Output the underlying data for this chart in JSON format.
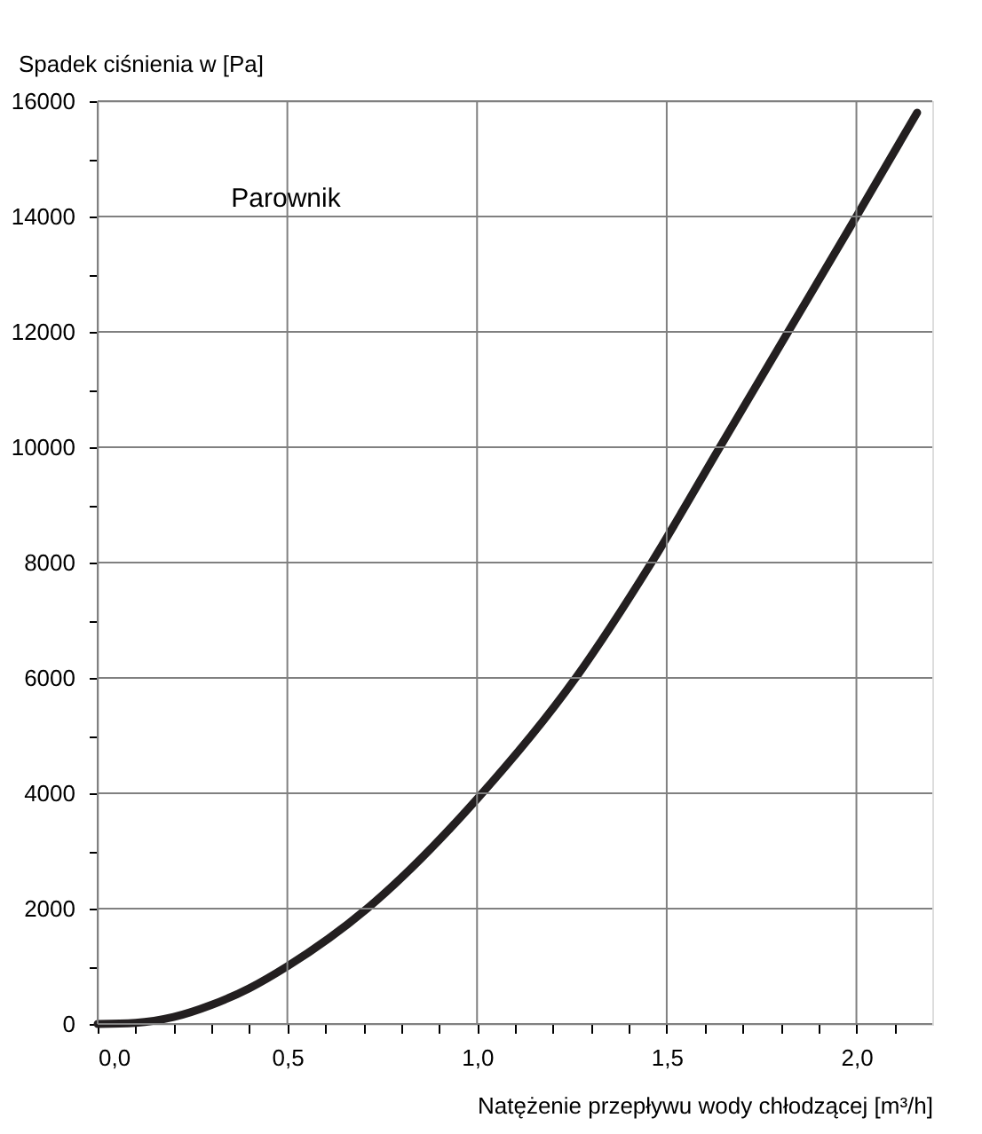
{
  "chart_data": {
    "type": "line",
    "ylabel": "Spadek ciśnienia w [Pa]",
    "xlabel": "Natężenie przepływu wody chłodzącej [m³/h]",
    "annotations": [
      "Parownik"
    ],
    "x": [
      0,
      0.1,
      0.2,
      0.3,
      0.4,
      0.5,
      0.71,
      1.0,
      1.26,
      1.46,
      1.64,
      1.82,
      2.0,
      2.16
    ],
    "series": [
      {
        "color": "#231f20",
        "values": [
          0,
          20,
          120,
          330,
          620,
          1000,
          2000,
          3900,
          6000,
          8000,
          10000,
          12000,
          14000,
          15800
        ]
      }
    ],
    "xlim": [
      0,
      2.2
    ],
    "ylim": [
      0,
      16000
    ],
    "xticks": [
      {
        "value": 0,
        "label": "0,0"
      },
      {
        "value": 0.1,
        "label": null
      },
      {
        "value": 0.2,
        "label": null
      },
      {
        "value": 0.3,
        "label": null
      },
      {
        "value": 0.4,
        "label": null
      },
      {
        "value": 0.5,
        "label": "0,5"
      },
      {
        "value": 0.6,
        "label": null
      },
      {
        "value": 0.7,
        "label": null
      },
      {
        "value": 0.8,
        "label": null
      },
      {
        "value": 0.9,
        "label": null
      },
      {
        "value": 1.0,
        "label": "1,0"
      },
      {
        "value": 1.1,
        "label": null
      },
      {
        "value": 1.2,
        "label": null
      },
      {
        "value": 1.3,
        "label": null
      },
      {
        "value": 1.4,
        "label": null
      },
      {
        "value": 1.5,
        "label": "1,5"
      },
      {
        "value": 1.6,
        "label": null
      },
      {
        "value": 1.7,
        "label": null
      },
      {
        "value": 1.8,
        "label": null
      },
      {
        "value": 1.9,
        "label": null
      },
      {
        "value": 2.0,
        "label": "2,0"
      },
      {
        "value": 2.1,
        "label": null
      }
    ],
    "yticks": [
      0,
      {
        "value": 1000,
        "label": null
      },
      2000,
      {
        "value": 3000,
        "label": null
      },
      4000,
      {
        "value": 5000,
        "label": null
      },
      6000,
      {
        "value": 7000,
        "label": null
      },
      8000,
      {
        "value": 9000,
        "label": null
      },
      10000,
      {
        "value": 11000,
        "label": null
      },
      12000,
      {
        "value": 13000,
        "label": null
      },
      14000,
      {
        "value": 15000,
        "label": null
      },
      16000
    ],
    "grid": true,
    "line_style": "solid",
    "marker": "none"
  }
}
